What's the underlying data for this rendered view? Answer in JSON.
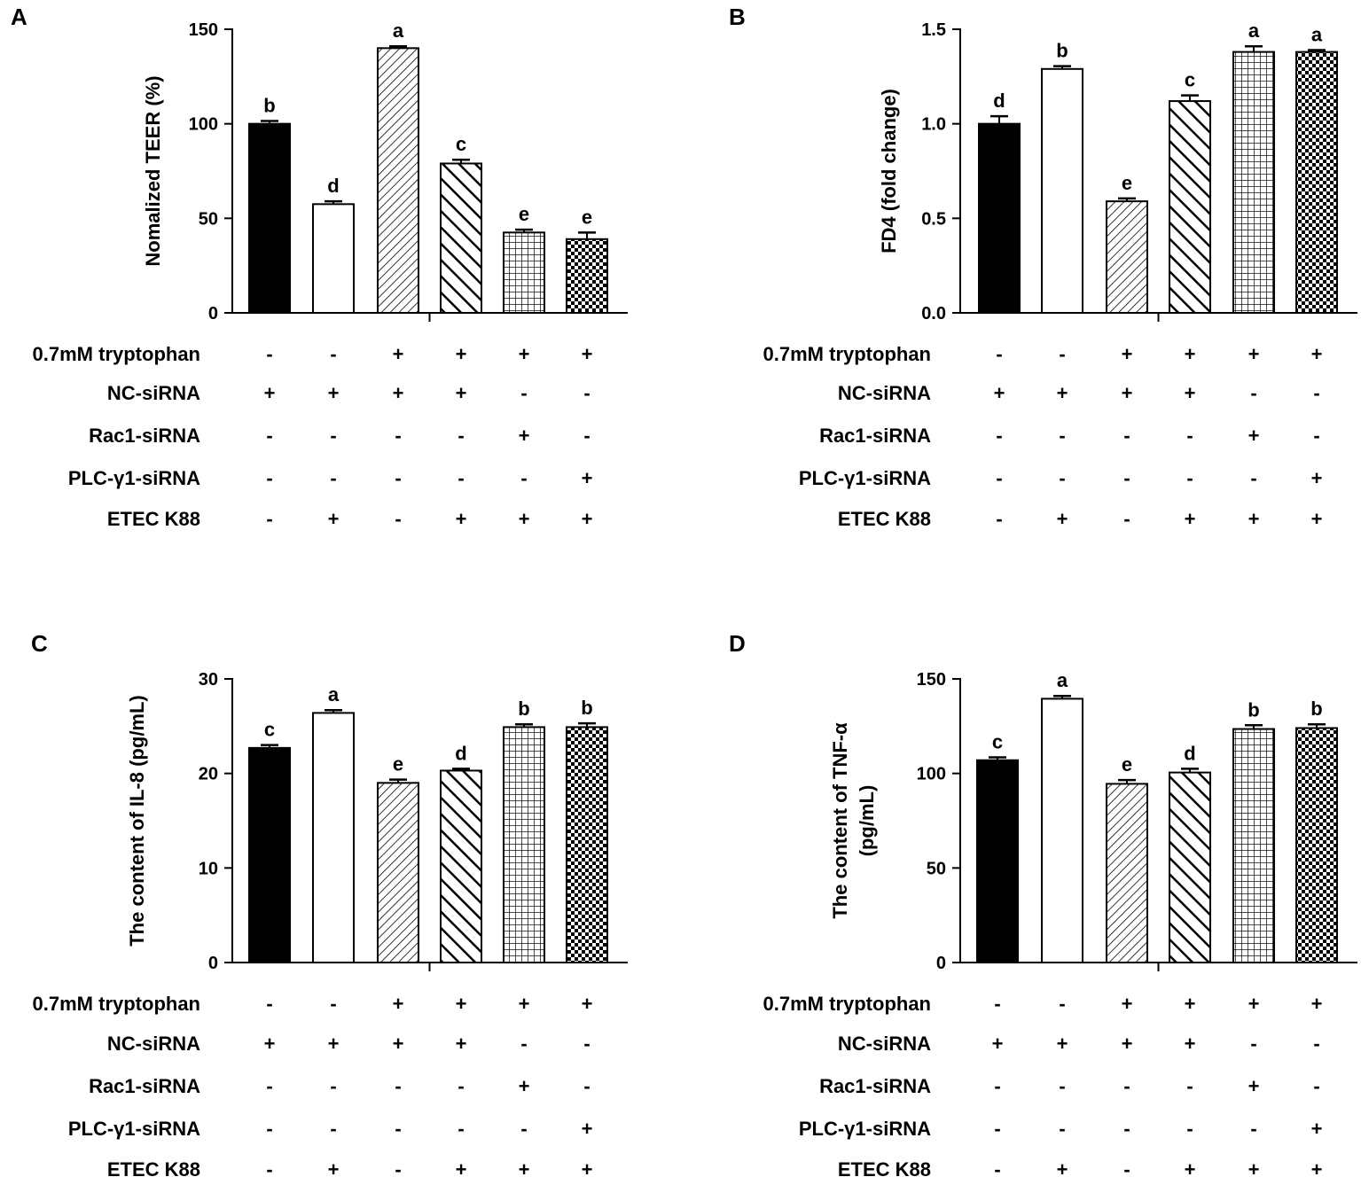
{
  "conditions": [
    "0.7mM tryptophan",
    "NC-siRNA",
    "Rac1-siRNA",
    "PLC-γ1-siRNA",
    "ETEC K88"
  ],
  "colors": {
    "ink": "#000000",
    "background": "#ffffff"
  },
  "fill_patterns": [
    "solid-black",
    "white",
    "fine-diagonal-up",
    "bold-diagonal-down",
    "grid",
    "checker"
  ],
  "chart_data": [
    {
      "panel": "A",
      "type": "bar",
      "ylabel": [
        "Nomalized TEER (%)"
      ],
      "ylim": [
        0,
        150
      ],
      "yticks": [
        0,
        50,
        100,
        150
      ],
      "values": [
        100,
        57.5,
        140,
        79,
        42.5,
        39
      ],
      "errors": [
        1.5,
        1.5,
        1,
        2,
        1.5,
        3.5
      ],
      "letters": [
        "b",
        "d",
        "a",
        "c",
        "e",
        "e"
      ],
      "signs": [
        [
          "-",
          "-",
          "+",
          "+",
          "+",
          "+"
        ],
        [
          "+",
          "+",
          "+",
          "+",
          "-",
          "-"
        ],
        [
          "-",
          "-",
          "-",
          "-",
          "+",
          "-"
        ],
        [
          "-",
          "-",
          "-",
          "-",
          "-",
          "+"
        ],
        [
          "-",
          "+",
          "-",
          "+",
          "+",
          "+"
        ]
      ]
    },
    {
      "panel": "B",
      "type": "bar",
      "ylabel": [
        "FD4 (fold change)"
      ],
      "ylim": [
        0,
        1.5
      ],
      "yticks": [
        0.0,
        0.5,
        1.0,
        1.5
      ],
      "ytick_labels": [
        "0.0",
        "0.5",
        "1.0",
        "1.5"
      ],
      "values": [
        1.0,
        1.29,
        0.59,
        1.12,
        1.38,
        1.38
      ],
      "errors": [
        0.04,
        0.015,
        0.015,
        0.03,
        0.03,
        0.01
      ],
      "letters": [
        "d",
        "b",
        "e",
        "c",
        "a",
        "a"
      ],
      "signs": [
        [
          "-",
          "-",
          "+",
          "+",
          "+",
          "+"
        ],
        [
          "+",
          "+",
          "+",
          "+",
          "-",
          "-"
        ],
        [
          "-",
          "-",
          "-",
          "-",
          "+",
          "-"
        ],
        [
          "-",
          "-",
          "-",
          "-",
          "-",
          "+"
        ],
        [
          "-",
          "+",
          "-",
          "+",
          "+",
          "+"
        ]
      ]
    },
    {
      "panel": "C",
      "type": "bar",
      "ylabel": [
        "The content of IL-8 (pg/mL)"
      ],
      "ylim": [
        0,
        30
      ],
      "yticks": [
        0,
        10,
        20,
        30
      ],
      "values": [
        22.7,
        26.4,
        19.0,
        20.3,
        24.9,
        24.9
      ],
      "errors": [
        0.3,
        0.3,
        0.35,
        0.2,
        0.3,
        0.4
      ],
      "letters": [
        "c",
        "a",
        "e",
        "d",
        "b",
        "b"
      ],
      "signs": [
        [
          "-",
          "-",
          "+",
          "+",
          "+",
          "+"
        ],
        [
          "+",
          "+",
          "+",
          "+",
          "-",
          "-"
        ],
        [
          "-",
          "-",
          "-",
          "-",
          "+",
          "-"
        ],
        [
          "-",
          "-",
          "-",
          "-",
          "-",
          "+"
        ],
        [
          "-",
          "+",
          "-",
          "+",
          "+",
          "+"
        ]
      ]
    },
    {
      "panel": "D",
      "type": "bar",
      "ylabel": [
        "The content of TNF-α",
        "(pg/mL)"
      ],
      "ylim": [
        0,
        150
      ],
      "yticks": [
        0,
        50,
        100,
        150
      ],
      "values": [
        107,
        139.5,
        94.5,
        100.5,
        123.5,
        124
      ],
      "errors": [
        1.5,
        1.5,
        2,
        2,
        2,
        2
      ],
      "letters": [
        "c",
        "a",
        "e",
        "d",
        "b",
        "b"
      ],
      "signs": [
        [
          "-",
          "-",
          "+",
          "+",
          "+",
          "+"
        ],
        [
          "+",
          "+",
          "+",
          "+",
          "-",
          "-"
        ],
        [
          "-",
          "-",
          "-",
          "-",
          "+",
          "-"
        ],
        [
          "-",
          "-",
          "-",
          "-",
          "-",
          "+"
        ],
        [
          "-",
          "+",
          "-",
          "+",
          "+",
          "+"
        ]
      ]
    }
  ]
}
